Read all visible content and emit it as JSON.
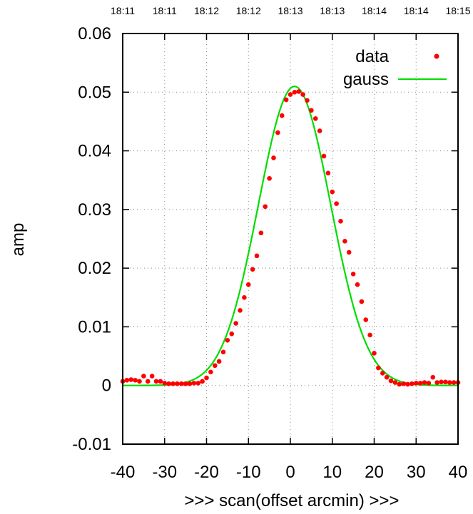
{
  "chart_data": {
    "type": "scatter",
    "xlabel": ">>> scan(offset arcmin) >>>",
    "ylabel": "amp",
    "xlim": [
      -40,
      40
    ],
    "ylim": [
      -0.01,
      0.06
    ],
    "x_ticks": [
      -40,
      -30,
      -20,
      -10,
      0,
      10,
      20,
      30,
      40
    ],
    "x_tick_labels": [
      "-40",
      "-30",
      "-20",
      "-10",
      "0",
      "10",
      "20",
      "30",
      "40"
    ],
    "y_ticks": [
      -0.01,
      0,
      0.01,
      0.02,
      0.03,
      0.04,
      0.05,
      0.06
    ],
    "y_tick_labels": [
      "-0.01",
      "0",
      "0.01",
      "0.02",
      "0.03",
      "0.04",
      "0.05",
      "0.06"
    ],
    "top_ticks": [
      "18:11",
      "18:11",
      "18:12",
      "18:12",
      "18:13",
      "18:13",
      "18:14",
      "18:14",
      "18:15"
    ],
    "grid": true,
    "legend_position": "top-right",
    "series": [
      {
        "name": "data",
        "kind": "points",
        "color": "#ff0000",
        "x": [
          -40,
          -39,
          -38,
          -37,
          -36,
          -35,
          -34,
          -33,
          -32,
          -31,
          -30,
          -29,
          -28,
          -27,
          -26,
          -25,
          -24,
          -23,
          -22,
          -21,
          -20,
          -19,
          -18,
          -17,
          -16,
          -15,
          -14,
          -13,
          -12,
          -11,
          -10,
          -9,
          -8,
          -7,
          -6,
          -5,
          -4,
          -3,
          -2,
          -1,
          0,
          1,
          2,
          3,
          4,
          5,
          6,
          7,
          8,
          9,
          10,
          11,
          12,
          13,
          14,
          15,
          16,
          17,
          18,
          19,
          20,
          21,
          22,
          23,
          24,
          25,
          26,
          27,
          28,
          29,
          30,
          31,
          32,
          33,
          34,
          35,
          36,
          37,
          38,
          39,
          40
        ],
        "y": [
          0.0007,
          0.0009,
          0.001,
          0.0009,
          0.0007,
          0.0016,
          0.0007,
          0.0016,
          0.0007,
          0.0007,
          0.0004,
          0.0003,
          0.0003,
          0.0003,
          0.0003,
          0.0003,
          0.0003,
          0.0004,
          0.0004,
          0.0007,
          0.0013,
          0.0023,
          0.0034,
          0.0041,
          0.0057,
          0.0077,
          0.0088,
          0.0106,
          0.0128,
          0.015,
          0.0172,
          0.0198,
          0.0221,
          0.026,
          0.0305,
          0.0353,
          0.0388,
          0.0431,
          0.046,
          0.0487,
          0.0496,
          0.05,
          0.0501,
          0.0496,
          0.0486,
          0.0469,
          0.0455,
          0.0434,
          0.0391,
          0.0362,
          0.033,
          0.031,
          0.028,
          0.0246,
          0.0227,
          0.019,
          0.0172,
          0.0143,
          0.0112,
          0.0086,
          0.0055,
          0.003,
          0.0021,
          0.0014,
          0.0008,
          0.0005,
          0.0002,
          0.0003,
          0.0002,
          0.0003,
          0.0004,
          0.0004,
          0.0005,
          0.0004,
          0.0014,
          0.0005,
          0.0006,
          0.0006,
          0.0005,
          0.0005,
          0.0005
        ]
      },
      {
        "name": "gauss",
        "kind": "line",
        "color": "#00dd00",
        "peak": 0.051,
        "center": 1.0,
        "sigma": 8.6
      }
    ]
  }
}
